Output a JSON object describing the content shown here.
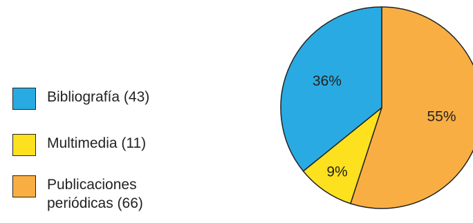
{
  "chart_data": {
    "type": "pie",
    "slices": [
      {
        "label": "Bibliografía (43)",
        "value": 43,
        "percent_label": "36%",
        "color": "#2aaae2"
      },
      {
        "label": "Multimedia (11)",
        "value": 11,
        "percent_label": "9%",
        "color": "#fde11e"
      },
      {
        "label": "Publicaciones periódicas (66)",
        "value": 66,
        "percent_label": "55%",
        "color": "#f9ae43"
      }
    ],
    "legend_position": "left",
    "edge_color": "#222222"
  }
}
